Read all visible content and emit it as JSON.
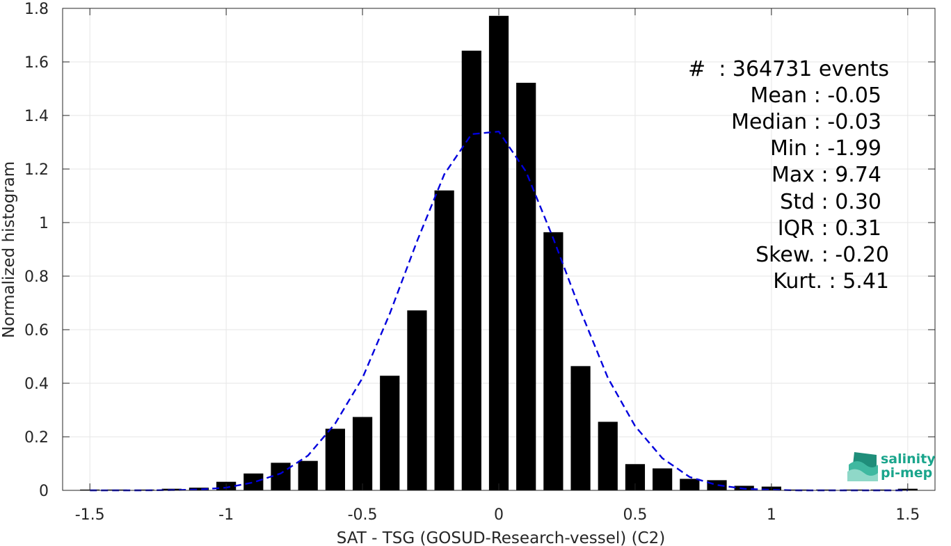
{
  "chart_data": {
    "type": "bar",
    "xlabel": "SAT - TSG (GOSUD-Research-vessel) (C2)",
    "ylabel": "Normalized histogram",
    "xlim": [
      -1.6,
      1.6
    ],
    "ylim": [
      0,
      1.8
    ],
    "grid": true,
    "xticks": [
      -1.5,
      -1,
      -0.5,
      0,
      0.5,
      1,
      1.5
    ],
    "xtick_labels": [
      "-1.5",
      "-1",
      "-0.5",
      "0",
      "0.5",
      "1",
      "1.5"
    ],
    "yticks": [
      0,
      0.2,
      0.4,
      0.6,
      0.8,
      1,
      1.2,
      1.4,
      1.6,
      1.8
    ],
    "ytick_labels": [
      "0",
      "0.2",
      "0.4",
      "0.6",
      "0.8",
      "1",
      "1.2",
      "1.4",
      "1.6",
      "1.8"
    ],
    "bar_color": "#000000",
    "bin_width": 0.1,
    "bars": {
      "x": [
        -1.5,
        -1.4,
        -1.3,
        -1.2,
        -1.1,
        -1.0,
        -0.9,
        -0.8,
        -0.7,
        -0.6,
        -0.5,
        -0.4,
        -0.3,
        -0.2,
        -0.1,
        0.0,
        0.1,
        0.2,
        0.3,
        0.4,
        0.5,
        0.6,
        0.7,
        0.8,
        0.9,
        1.0,
        1.1,
        1.2,
        1.3,
        1.4,
        1.5
      ],
      "values": [
        0.003,
        0.003,
        0.003,
        0.006,
        0.01,
        0.032,
        0.063,
        0.103,
        0.11,
        0.23,
        0.274,
        0.428,
        0.672,
        1.12,
        1.642,
        1.772,
        1.522,
        0.964,
        0.464,
        0.256,
        0.098,
        0.082,
        0.043,
        0.038,
        0.017,
        0.014,
        0.003,
        0.003,
        0.003,
        0.003,
        0.006
      ]
    },
    "fit_curve": {
      "style": "dashed",
      "color": "#0000dd",
      "x": [
        -1.5,
        -1.4,
        -1.3,
        -1.2,
        -1.1,
        -1.0,
        -0.9,
        -0.8,
        -0.7,
        -0.6,
        -0.5,
        -0.4,
        -0.3,
        -0.2,
        -0.1,
        0.0,
        0.1,
        0.2,
        0.3,
        0.4,
        0.5,
        0.6,
        0.7,
        0.8,
        0.9,
        1.0,
        1.1,
        1.2,
        1.3,
        1.4,
        1.5
      ],
      "y": [
        0.0,
        0.0,
        0.0,
        0.001,
        0.003,
        0.01,
        0.03,
        0.063,
        0.13,
        0.25,
        0.42,
        0.66,
        0.93,
        1.18,
        1.33,
        1.34,
        1.19,
        0.94,
        0.67,
        0.42,
        0.24,
        0.12,
        0.05,
        0.02,
        0.006,
        0.002,
        0.0,
        0.0,
        0.0,
        0.0,
        0.0
      ]
    },
    "annotations": [
      "#  : 364731 events",
      "Mean : -0.05",
      "Median : -0.03",
      "Min : -1.99",
      "Max : 9.74",
      "Std : 0.30",
      "IQR : 0.31",
      "Skew. : -0.20",
      "Kurt. : 5.41"
    ]
  },
  "logo": {
    "line1": "salinity",
    "line2": "pi-mep",
    "color": "#1aa58c"
  }
}
